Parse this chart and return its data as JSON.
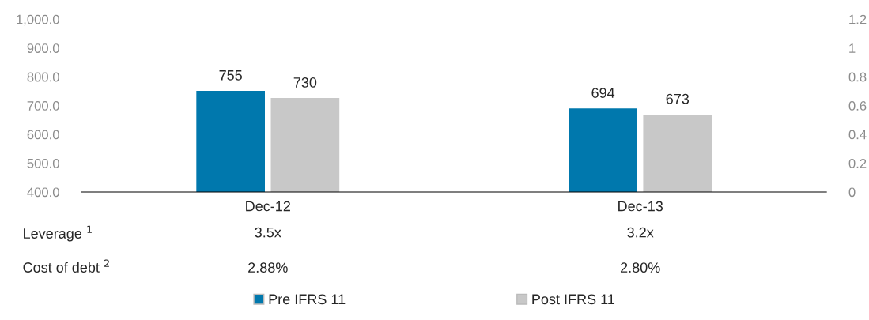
{
  "chart_data": {
    "type": "bar",
    "categories": [
      "Dec-12",
      "Dec-13"
    ],
    "series": [
      {
        "name": "Pre IFRS 11",
        "color": "#0078ad",
        "values": [
          755,
          694
        ]
      },
      {
        "name": "Post IFRS 11",
        "color": "#c8c8c8",
        "values": [
          730,
          673
        ]
      }
    ],
    "ylim": [
      400,
      1000
    ],
    "yticks": [
      {
        "value": 400,
        "label": "400.0"
      },
      {
        "value": 500,
        "label": "500.0"
      },
      {
        "value": 600,
        "label": "600.0"
      },
      {
        "value": 700,
        "label": "700.0"
      },
      {
        "value": 800,
        "label": "800.0"
      },
      {
        "value": 900,
        "label": "900.0"
      },
      {
        "value": 1000,
        "label": "1,000.0"
      }
    ],
    "y2lim": [
      0,
      1.2
    ],
    "y2ticks": [
      0,
      0.2,
      0.4,
      0.6,
      0.8,
      1,
      1.2
    ],
    "data_labels": true,
    "legend": "bottom",
    "grid": false,
    "annotations": [
      "Leverage $^{1}$",
      "3.5x",
      "3.2x",
      "Cost of debt $^{2}$",
      "2.88%",
      "2.80%"
    ]
  }
}
